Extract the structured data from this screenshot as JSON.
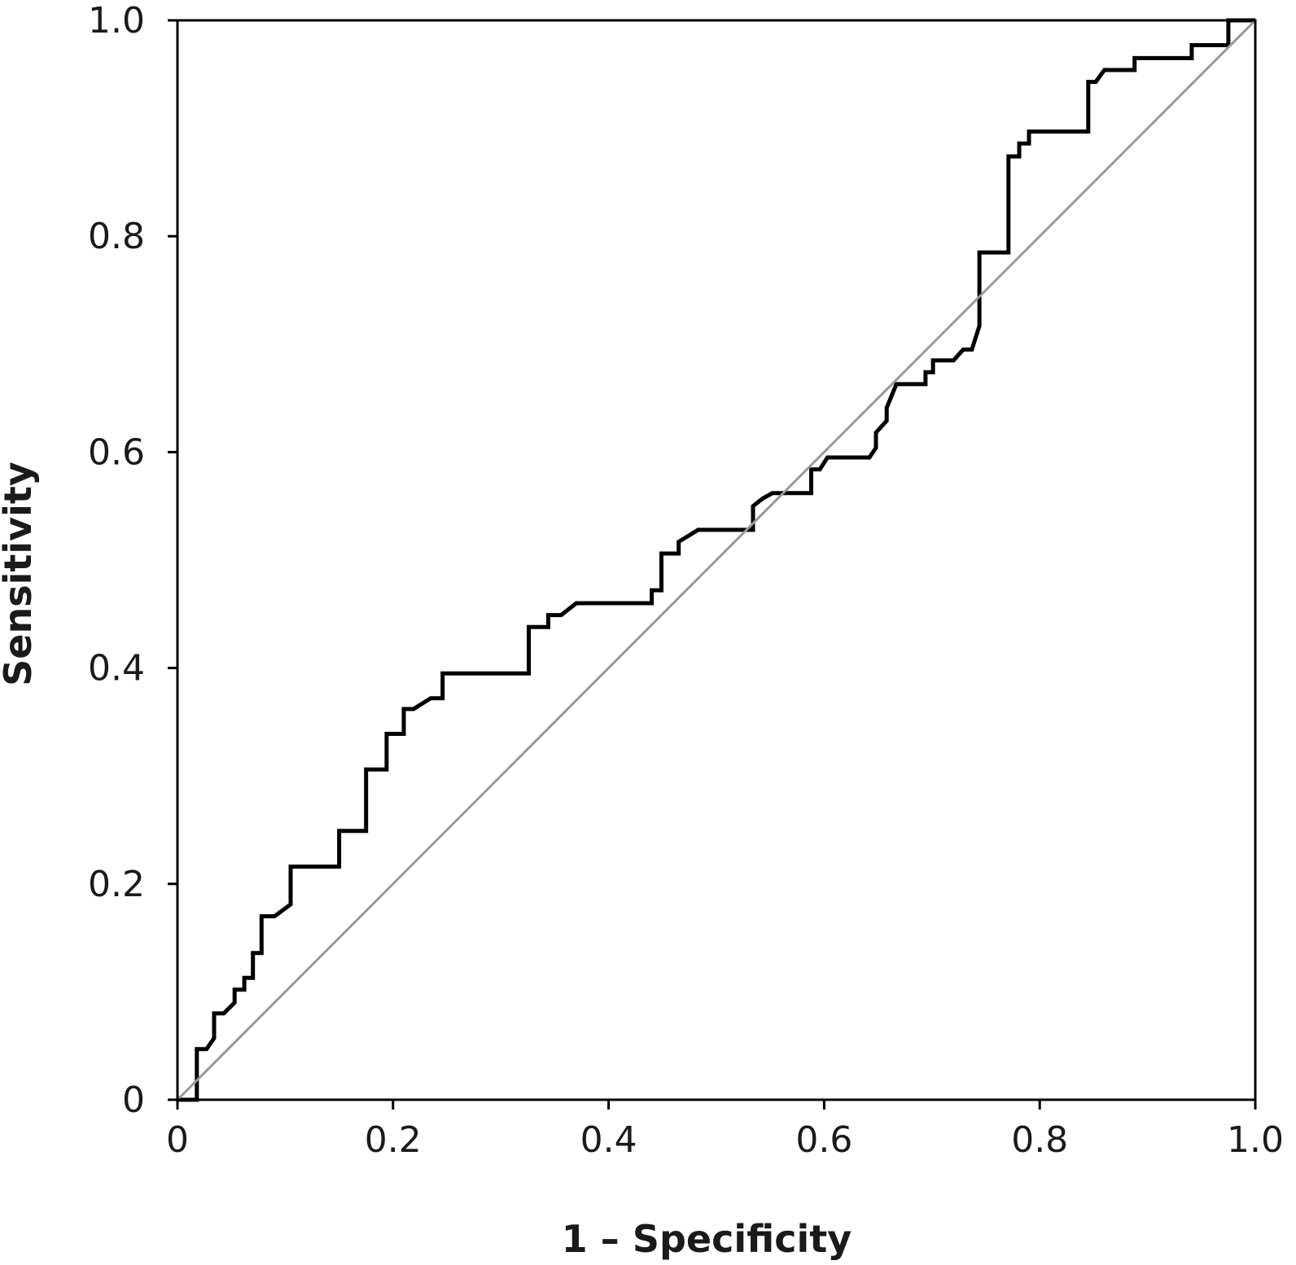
{
  "chart_data": {
    "type": "line",
    "title": "",
    "xlabel": "1 – Specificity",
    "ylabel": "Sensitivity",
    "xlim": [
      0,
      1.0
    ],
    "ylim": [
      0,
      1.0
    ],
    "grid": false,
    "legend": "none",
    "x_ticks": [
      {
        "value": 0,
        "label": "0"
      },
      {
        "value": 0.2,
        "label": "0.2"
      },
      {
        "value": 0.4,
        "label": "0.4"
      },
      {
        "value": 0.6,
        "label": "0.6"
      },
      {
        "value": 0.8,
        "label": "0.8"
      },
      {
        "value": 1.0,
        "label": "1.0"
      }
    ],
    "y_ticks": [
      {
        "value": 0,
        "label": "0"
      },
      {
        "value": 0.2,
        "label": "0.2"
      },
      {
        "value": 0.4,
        "label": "0.4"
      },
      {
        "value": 0.6,
        "label": "0.6"
      },
      {
        "value": 0.8,
        "label": "0.8"
      },
      {
        "value": 1.0,
        "label": "1.0"
      }
    ],
    "colors": {
      "roc": "#000000",
      "reference": "#999999",
      "axes": "#000000"
    },
    "series": [
      {
        "role": "roc-curve",
        "x": [
          0,
          0.018,
          0.018,
          0.027,
          0.034,
          0.034,
          0.043,
          0.053,
          0.053,
          0.062,
          0.062,
          0.07,
          0.07,
          0.078,
          0.078,
          0.09,
          0.105,
          0.105,
          0.15,
          0.15,
          0.175,
          0.175,
          0.194,
          0.194,
          0.21,
          0.21,
          0.219,
          0.235,
          0.246,
          0.246,
          0.326,
          0.326,
          0.344,
          0.344,
          0.356,
          0.37,
          0.44,
          0.44,
          0.449,
          0.449,
          0.465,
          0.465,
          0.475,
          0.483,
          0.534,
          0.534,
          0.543,
          0.552,
          0.588,
          0.588,
          0.596,
          0.603,
          0.642,
          0.648,
          0.648,
          0.658,
          0.658,
          0.667,
          0.694,
          0.694,
          0.701,
          0.701,
          0.72,
          0.729,
          0.737,
          0.744,
          0.744,
          0.771,
          0.771,
          0.781,
          0.781,
          0.79,
          0.79,
          0.845,
          0.845,
          0.852,
          0.86,
          0.888,
          0.888,
          0.941,
          0.941,
          0.975,
          0.975,
          1.0
        ],
        "y": [
          0,
          0,
          0.047,
          0.047,
          0.057,
          0.08,
          0.08,
          0.09,
          0.102,
          0.102,
          0.113,
          0.113,
          0.136,
          0.136,
          0.17,
          0.17,
          0.181,
          0.216,
          0.216,
          0.249,
          0.249,
          0.306,
          0.306,
          0.339,
          0.339,
          0.362,
          0.362,
          0.372,
          0.372,
          0.395,
          0.395,
          0.438,
          0.438,
          0.449,
          0.449,
          0.46,
          0.46,
          0.472,
          0.472,
          0.506,
          0.506,
          0.517,
          0.523,
          0.528,
          0.528,
          0.55,
          0.557,
          0.562,
          0.562,
          0.584,
          0.584,
          0.595,
          0.595,
          0.604,
          0.618,
          0.629,
          0.641,
          0.663,
          0.663,
          0.674,
          0.674,
          0.685,
          0.685,
          0.695,
          0.695,
          0.717,
          0.785,
          0.785,
          0.874,
          0.874,
          0.886,
          0.886,
          0.897,
          0.897,
          0.943,
          0.943,
          0.954,
          0.954,
          0.965,
          0.965,
          0.977,
          0.977,
          1.0,
          1.0
        ]
      },
      {
        "role": "reference-line",
        "x": [
          0,
          1.0
        ],
        "y": [
          0,
          1.0
        ]
      }
    ]
  }
}
